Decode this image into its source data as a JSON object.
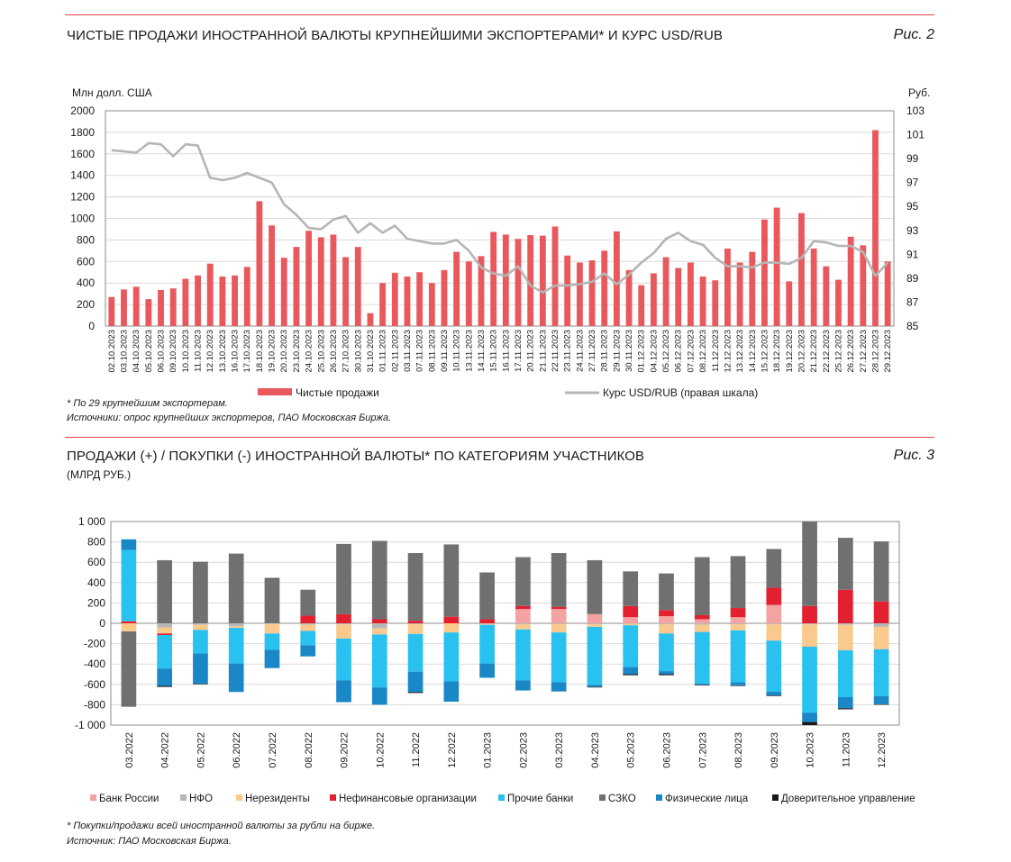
{
  "fig2": {
    "title": "ЧИСТЫЕ ПРОДАЖИ ИНОСТРАННОЙ ВАЛЮТЫ КРУПНЕЙШИМИ ЭКСПОРТЕРАМИ* И КУРС USD/RUB",
    "fig_label": "Рис. 2",
    "footnote": "* По 29 крупнейшим экспортерам.",
    "source": "Источники: опрос крупнейших экспортеров, ПАО Московская Биржа."
  },
  "fig3": {
    "title": "ПРОДАЖИ (+) / ПОКУПКИ (-) ИНОСТРАННОЙ ВАЛЮТЫ* ПО КАТЕГОРИЯМ УЧАСТНИКОВ",
    "subtitle": "(МЛРД РУБ.)",
    "fig_label": "Рис. 3",
    "footnote": "* Покупки/продажи всей иностранной валюты за рубли на бирже.",
    "source": "Источник: ПАО Московская Биржа."
  },
  "colors": {
    "bar_red": "#e8585c",
    "line_grey": "#b5b5b5",
    "bank_russia": "#f4a3a3",
    "nfo": "#b7b7b7",
    "nonresidents": "#f9c98d",
    "nonfinancial": "#e2202f",
    "other_banks": "#29c1f0",
    "szko": "#707070",
    "individuals": "#1a87c6",
    "trust": "#1a1a1a",
    "rule": "#e8424a"
  },
  "chart_data": [
    {
      "type": "bar",
      "ylabel": "Млн долл. США",
      "y2label": "Руб.",
      "ylim": [
        0,
        2000
      ],
      "y_ticks": [
        0,
        200,
        400,
        600,
        800,
        1000,
        1200,
        1400,
        1600,
        1800,
        2000
      ],
      "y2lim": [
        85,
        103
      ],
      "y2_ticks": [
        85,
        87,
        89,
        91,
        93,
        95,
        97,
        99,
        101,
        103
      ],
      "grid": true,
      "legend_position": "bottom",
      "categories": [
        "02.10.2023",
        "03.10.2023",
        "04.10.2023",
        "05.10.2023",
        "06.10.2023",
        "09.10.2023",
        "10.10.2023",
        "11.10.2023",
        "12.10.2023",
        "13.10.2023",
        "16.10.2023",
        "17.10.2023",
        "18.10.2023",
        "19.10.2023",
        "20.10.2023",
        "23.10.2023",
        "24.10.2023",
        "25.10.2023",
        "26.10.2023",
        "27.10.2023",
        "30.10.2023",
        "31.10.2023",
        "01.11.2023",
        "02.11.2023",
        "03.11.2023",
        "07.11.2023",
        "08.11.2023",
        "09.11.2023",
        "10.11.2023",
        "13.11.2023",
        "14.11.2023",
        "15.11.2023",
        "16.11.2023",
        "17.11.2023",
        "20.11.2023",
        "21.11.2023",
        "22.11.2023",
        "23.11.2023",
        "24.11.2023",
        "27.11.2023",
        "28.11.2023",
        "29.11.2023",
        "30.11.2023",
        "01.12.2023",
        "04.12.2023",
        "05.12.2023",
        "06.12.2023",
        "07.12.2023",
        "08.12.2023",
        "11.12.2023",
        "12.12.2023",
        "13.12.2023",
        "14.12.2023",
        "15.12.2023",
        "18.12.2023",
        "19.12.2023",
        "20.12.2023",
        "21.12.2023",
        "22.12.2023",
        "25.12.2023",
        "26.12.2023",
        "27.12.2023",
        "28.12.2023",
        "29.12.2023"
      ],
      "series": [
        {
          "name": "Чистые продажи",
          "kind": "bar",
          "axis": "left",
          "values": [
            270,
            340,
            365,
            250,
            335,
            350,
            440,
            470,
            580,
            460,
            470,
            550,
            1160,
            935,
            635,
            735,
            885,
            825,
            850,
            640,
            735,
            120,
            400,
            495,
            460,
            500,
            400,
            520,
            690,
            600,
            650,
            875,
            850,
            810,
            845,
            840,
            925,
            655,
            590,
            610,
            700,
            880,
            520,
            380,
            490,
            640,
            540,
            590,
            460,
            425,
            720,
            590,
            690,
            990,
            1100,
            415,
            1050,
            720,
            555,
            430,
            830,
            750,
            1820,
            600
          ]
        },
        {
          "name": "Курс USD/RUB (правая шкала)",
          "kind": "line",
          "axis": "right",
          "values": [
            99.7,
            99.6,
            99.5,
            100.3,
            100.2,
            99.2,
            100.2,
            100.1,
            97.4,
            97.2,
            97.4,
            97.8,
            97.4,
            97.0,
            95.2,
            94.3,
            93.2,
            93.1,
            93.9,
            94.2,
            92.8,
            93.6,
            92.8,
            93.4,
            92.3,
            92.1,
            91.9,
            91.9,
            92.2,
            91.3,
            89.9,
            89.4,
            89.2,
            90.0,
            88.4,
            87.8,
            88.4,
            88.4,
            88.5,
            88.7,
            89.4,
            88.5,
            89.3,
            90.3,
            91.1,
            92.3,
            92.8,
            92.1,
            91.8,
            90.7,
            90.0,
            90.0,
            89.9,
            90.3,
            90.3,
            90.2,
            90.7,
            92.1,
            92.0,
            91.7,
            91.7,
            91.2,
            89.2,
            90.3
          ]
        }
      ],
      "x_tick_labels_shown": [
        "02.10.2023",
        "03.10.2023",
        "04.10.2023",
        "05.10.2023",
        "06.10.2023",
        "09.10.2023",
        "10.10.2023",
        "11.10.2023",
        "12.10.2023",
        "13.10.2023",
        "16.10.2023",
        "17.10.2023",
        "18.10.2023",
        "19.10.2023",
        "20.10.2023",
        "23.10.2023",
        "24.10.2023",
        "25.10.2023",
        "26.10.2023",
        "27.10.2023",
        "30.10.2023",
        "31.10.2023",
        "01.11.2023",
        "02.11.2023",
        "03.11.2023",
        "07.11.2023",
        "08.11.2023",
        "09.11.2023",
        "10.11.2023",
        "13.11.2023",
        "14.11.2023",
        "15.11.2023",
        "16.11.2023",
        "17.11.2023",
        "20.11.2023",
        "21.11.2023",
        "22.11.2023",
        "23.11.2023",
        "24.11.2023",
        "27.11.2023",
        "28.11.2023",
        "29.11.2023",
        "30.11.2023",
        "01.12.2023",
        "04.12.2023",
        "05.12.2023",
        "06.12.2023",
        "07.12.2023",
        "08.12.2023",
        "11.12.2023",
        "12.12.2023",
        "13.12.2023",
        "14.12.2023",
        "15.12.2023",
        "18.12.2023",
        "19.12.2023",
        "20.12.2023",
        "21.12.2023",
        "22.12.2023",
        "25.12.2023",
        "26.12.2023",
        "27.12.2023",
        "28.12.2023",
        "29.12.2023"
      ]
    },
    {
      "type": "bar",
      "stacked": true,
      "ylim": [
        -1000,
        1000
      ],
      "y_ticks": [
        -1000,
        -800,
        -600,
        -400,
        -200,
        0,
        200,
        400,
        600,
        800,
        1000
      ],
      "y_tick_labels": [
        "-1 000",
        "-800",
        "-600",
        "-400",
        "-200",
        "0",
        "200",
        "400",
        "600",
        "800",
        "1 000"
      ],
      "grid": true,
      "legend_position": "bottom",
      "categories": [
        "03.2022",
        "04.2022",
        "05.2022",
        "06.2022",
        "07.2022",
        "08.2022",
        "09.2022",
        "10.2022",
        "11.2022",
        "12.2022",
        "01.2023",
        "02.2023",
        "03.2023",
        "04.2023",
        "05.2023",
        "06.2023",
        "07.2023",
        "08.2023",
        "09.2023",
        "10.2023",
        "11.2023",
        "12.2023"
      ],
      "series": [
        {
          "name": "Банк России",
          "color_key": "bank_russia",
          "values": [
            0,
            0,
            0,
            0,
            0,
            0,
            0,
            0,
            0,
            0,
            0,
            140,
            140,
            90,
            60,
            70,
            40,
            60,
            180,
            0,
            0,
            0
          ]
        },
        {
          "name": "НФО",
          "color_key": "nfo",
          "values": [
            0,
            -40,
            -15,
            -30,
            -5,
            -15,
            -10,
            -50,
            -10,
            0,
            -5,
            -10,
            -10,
            -10,
            -5,
            -10,
            -15,
            -10,
            -10,
            -10,
            -15,
            -35
          ]
        },
        {
          "name": "Нерезиденты",
          "color_key": "nonresidents",
          "values": [
            -80,
            -60,
            -50,
            -15,
            -95,
            -60,
            -140,
            -60,
            -95,
            -90,
            -10,
            -50,
            -80,
            -25,
            -15,
            -90,
            -70,
            -60,
            -160,
            -220,
            -250,
            -220
          ]
        },
        {
          "name": "Нефинансовые организации",
          "color_key": "nonfinancial",
          "values": [
            20,
            -15,
            0,
            0,
            0,
            75,
            90,
            40,
            25,
            65,
            40,
            30,
            20,
            0,
            110,
            60,
            40,
            90,
            170,
            170,
            330,
            215
          ]
        },
        {
          "name": "Прочие банки",
          "color_key": "other_banks",
          "values": [
            700,
            -330,
            -230,
            -350,
            -160,
            -140,
            -410,
            -520,
            -370,
            -480,
            -380,
            -500,
            -490,
            -570,
            -410,
            -370,
            -510,
            -510,
            -500,
            -650,
            -460,
            -460
          ]
        },
        {
          "name": "СЗКО",
          "color_key": "szko",
          "values": [
            -740,
            620,
            605,
            685,
            440,
            255,
            690,
            770,
            665,
            710,
            460,
            480,
            530,
            530,
            340,
            360,
            570,
            510,
            380,
            830,
            510,
            590
          ]
        },
        {
          "name": "Физические лица",
          "color_key": "individuals",
          "values": [
            105,
            -170,
            -300,
            -280,
            -180,
            -110,
            -215,
            -170,
            -200,
            -200,
            -140,
            -100,
            -90,
            -20,
            -70,
            -30,
            -10,
            -30,
            -40,
            -90,
            -110,
            -80
          ]
        },
        {
          "name": "Доверительное управление",
          "color_key": "trust",
          "values": [
            0,
            -10,
            -5,
            0,
            5,
            0,
            0,
            0,
            -10,
            0,
            0,
            0,
            0,
            -5,
            -10,
            -10,
            -5,
            -5,
            -5,
            -30,
            -10,
            -5
          ]
        }
      ]
    }
  ]
}
